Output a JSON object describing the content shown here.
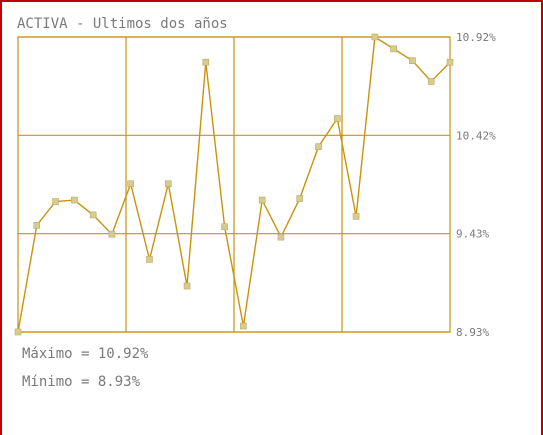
{
  "chart_data": {
    "type": "line",
    "title": "ACTIVA - Ultimos dos años",
    "ytick_labels": [
      "10.92%",
      "10.42%",
      "9.43%",
      "8.93%"
    ],
    "ylim": [
      8.93,
      10.92
    ],
    "grid": true,
    "values": [
      8.93,
      9.65,
      9.81,
      9.82,
      9.72,
      9.59,
      9.93,
      9.42,
      9.93,
      9.24,
      10.75,
      9.64,
      8.97,
      9.82,
      9.57,
      9.83,
      10.18,
      10.37,
      9.71,
      10.92,
      10.84,
      10.76,
      10.62,
      10.75
    ],
    "line_color": "#c9930c",
    "marker_color": "#d6cc8e",
    "grid_color": "#c9930c"
  },
  "stats": {
    "max_text": "Máximo = 10.92%",
    "min_text": "Mínimo = 8.93%"
  }
}
